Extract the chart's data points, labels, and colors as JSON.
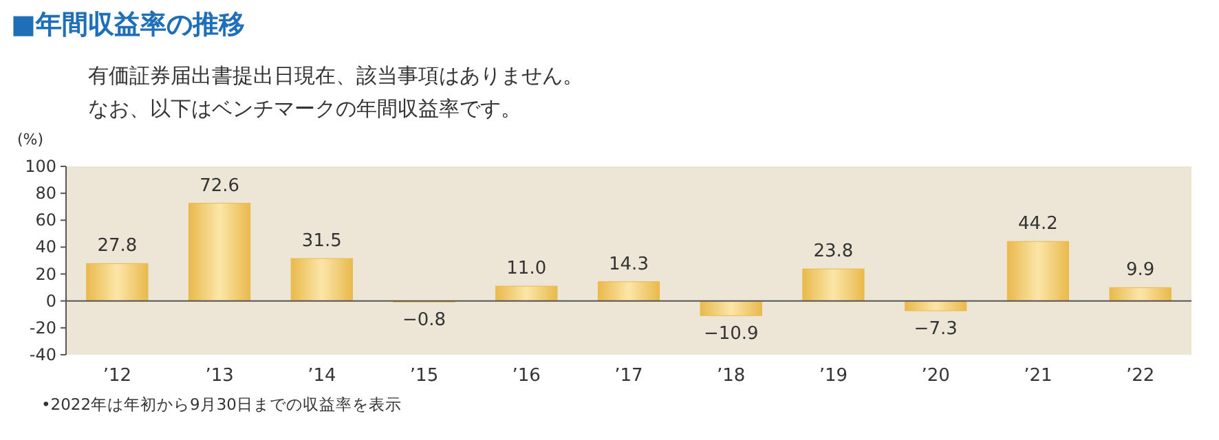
{
  "chart_data": {
    "type": "bar",
    "title": "■年間収益率の推移",
    "subtitle": [
      "有価証券届出書提出日現在、該当事項はありません。",
      "なお、以下はベンチマークの年間収益率です。"
    ],
    "ylabel": "(%)",
    "categories": [
      "’12",
      "’13",
      "’14",
      "’15",
      "’16",
      "’17",
      "’18",
      "’19",
      "’20",
      "’21",
      "’22"
    ],
    "values": [
      27.8,
      72.6,
      31.5,
      -0.8,
      11.0,
      14.3,
      -10.9,
      23.8,
      -7.3,
      44.2,
      9.9
    ],
    "value_labels": [
      "27.8",
      "72.6",
      "31.5",
      "−0.8",
      "11.0",
      "14.3",
      "−10.9",
      "23.8",
      "−7.3",
      "44.2",
      "9.9"
    ],
    "color": "#e9b94c",
    "ylim": [
      -40,
      100
    ],
    "yticks": [
      -40,
      -20,
      0,
      20,
      40,
      60,
      80,
      100
    ],
    "annotations": [
      "•2022年は年初から9月30日までの収益率を表示"
    ]
  }
}
